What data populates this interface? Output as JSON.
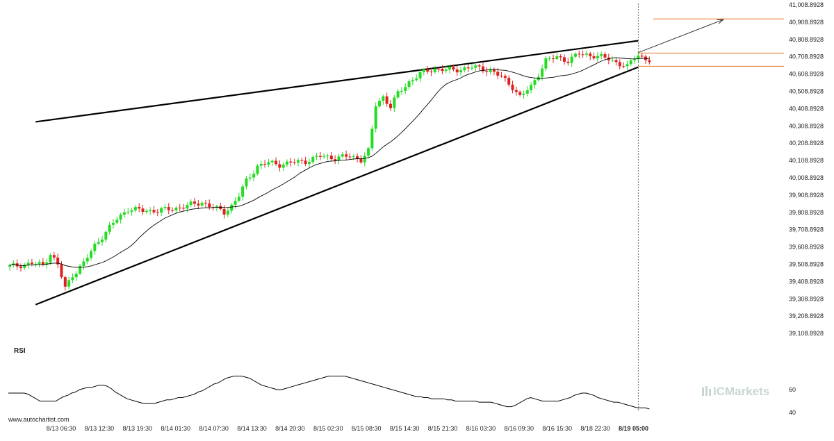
{
  "footer": {
    "source": "www.autochartist.com"
  },
  "brand": {
    "name": "ICMarkets",
    "prefix": "IC",
    "suffix": "Markets"
  },
  "chart_data": [
    {
      "type": "candlestick",
      "title": "",
      "ylim": [
        39008.8928,
        41008.8928
      ],
      "grid": false,
      "y_ticks": [
        "41,008.8928",
        "40,908.8928",
        "40,808.8928",
        "40,708.8928",
        "40,608.8928",
        "40,508.8928",
        "40,408.8928",
        "40,308.8928",
        "40,208.8928",
        "40,108.8928",
        "40,008.8928",
        "39,908.8928",
        "39,808.8928",
        "39,708.8928",
        "39,608.8928",
        "39,508.8928",
        "39,408.8928",
        "39,308.8928",
        "39,208.8928",
        "39,108.8928"
      ],
      "x_ticks": [
        "8/13 06:30",
        "8/13 12:30",
        "8/13 19:30",
        "8/14 01:30",
        "8/14 07:30",
        "8/14 13:30",
        "8/14 20:30",
        "8/15 02:30",
        "8/15 08:30",
        "8/15 14:30",
        "8/15 21:30",
        "8/16 03:30",
        "8/16 09:30",
        "8/16 15:30",
        "8/18 22:30",
        "8/19 05:00"
      ],
      "current_time_label": "8/19 05:00",
      "price_anchors": [
        {
          "t": 0,
          "v": 39430
        },
        {
          "t": 3,
          "v": 39440
        },
        {
          "t": 6,
          "v": 39450
        },
        {
          "t": 9,
          "v": 39440
        },
        {
          "t": 11,
          "v": 39510
        },
        {
          "t": 13,
          "v": 39440
        },
        {
          "t": 15,
          "v": 39300
        },
        {
          "t": 17,
          "v": 39380
        },
        {
          "t": 20,
          "v": 39450
        },
        {
          "t": 23,
          "v": 39560
        },
        {
          "t": 26,
          "v": 39640
        },
        {
          "t": 29,
          "v": 39720
        },
        {
          "t": 32,
          "v": 39780
        },
        {
          "t": 36,
          "v": 39770
        },
        {
          "t": 40,
          "v": 39770
        },
        {
          "t": 44,
          "v": 39780
        },
        {
          "t": 48,
          "v": 39800
        },
        {
          "t": 52,
          "v": 39820
        },
        {
          "t": 55,
          "v": 39790
        },
        {
          "t": 58,
          "v": 39760
        },
        {
          "t": 60,
          "v": 39800
        },
        {
          "t": 62,
          "v": 39860
        },
        {
          "t": 64,
          "v": 39950
        },
        {
          "t": 67,
          "v": 40040
        },
        {
          "t": 70,
          "v": 40060
        },
        {
          "t": 73,
          "v": 40050
        },
        {
          "t": 76,
          "v": 40060
        },
        {
          "t": 80,
          "v": 40070
        },
        {
          "t": 84,
          "v": 40100
        },
        {
          "t": 88,
          "v": 40090
        },
        {
          "t": 92,
          "v": 40100
        },
        {
          "t": 95,
          "v": 40080
        },
        {
          "t": 97,
          "v": 40130
        },
        {
          "t": 98,
          "v": 40260
        },
        {
          "t": 99,
          "v": 40410
        },
        {
          "t": 101,
          "v": 40460
        },
        {
          "t": 103,
          "v": 40400
        },
        {
          "t": 105,
          "v": 40480
        },
        {
          "t": 108,
          "v": 40550
        },
        {
          "t": 111,
          "v": 40600
        },
        {
          "t": 115,
          "v": 40630
        },
        {
          "t": 120,
          "v": 40620
        },
        {
          "t": 125,
          "v": 40640
        },
        {
          "t": 130,
          "v": 40620
        },
        {
          "t": 133,
          "v": 40580
        },
        {
          "t": 136,
          "v": 40520
        },
        {
          "t": 138,
          "v": 40460
        },
        {
          "t": 141,
          "v": 40520
        },
        {
          "t": 143,
          "v": 40600
        },
        {
          "t": 145,
          "v": 40680
        },
        {
          "t": 148,
          "v": 40700
        },
        {
          "t": 151,
          "v": 40680
        },
        {
          "t": 154,
          "v": 40720
        },
        {
          "t": 158,
          "v": 40710
        },
        {
          "t": 162,
          "v": 40690
        },
        {
          "t": 165,
          "v": 40660
        },
        {
          "t": 167,
          "v": 40640
        },
        {
          "t": 169,
          "v": 40700
        },
        {
          "t": 170,
          "v": 40715
        },
        {
          "t": 171,
          "v": 40700
        },
        {
          "t": 173,
          "v": 40680
        }
      ],
      "last_candle_index": 170,
      "candles_total": 174,
      "ma_period": 20,
      "pattern": {
        "name": "Rising Wedge",
        "upper_line": {
          "from": {
            "t": 7,
            "v": 40308
          },
          "to": {
            "t": 170,
            "v": 40800
          }
        },
        "lower_line": {
          "from": {
            "t": 7,
            "v": 39200
          },
          "to": {
            "t": 170,
            "v": 40640
          }
        },
        "forecast_arrow": {
          "from": {
            "t": 170,
            "v": 40728
          },
          "to": {
            "t": 193,
            "v": 40928
          }
        },
        "levels": [
          {
            "name": "target",
            "value": 40932,
            "from_t": 174
          },
          {
            "name": "resistance",
            "value": 40725,
            "from_t": 170
          },
          {
            "name": "support",
            "value": 40645,
            "from_t": 170
          }
        ]
      },
      "colors": {
        "bull": "#22dd22",
        "bear": "#e02020",
        "pattern": "#000000",
        "level": "#e07020",
        "ma": "#000000",
        "time_marker": "#666666"
      }
    },
    {
      "type": "line",
      "title": "RSI",
      "ylim": [
        35,
        90
      ],
      "y_ticks": [
        60,
        40
      ],
      "values": [
        57,
        57,
        57,
        57,
        57,
        56,
        54,
        52,
        50,
        50,
        50,
        50,
        50,
        52,
        54,
        55,
        57,
        58,
        60,
        61,
        62,
        62,
        63,
        64,
        64,
        63,
        61,
        58,
        56,
        54,
        52,
        51,
        50,
        49,
        48,
        48,
        48,
        48,
        49,
        50,
        51,
        51,
        52,
        53,
        53,
        54,
        55,
        56,
        58,
        59,
        61,
        63,
        65,
        66,
        68,
        70,
        71,
        72,
        72,
        72,
        71,
        70,
        68,
        66,
        64,
        63,
        62,
        61,
        60,
        60,
        61,
        62,
        63,
        64,
        65,
        66,
        67,
        68,
        69,
        70,
        71,
        72,
        72,
        72,
        72,
        72,
        71,
        70,
        69,
        68,
        67,
        66,
        65,
        64,
        63,
        62,
        61,
        60,
        59,
        58,
        57,
        56,
        55,
        54,
        54,
        53,
        53,
        52,
        52,
        52,
        52,
        51,
        51,
        50,
        50,
        50,
        50,
        50,
        50,
        49,
        49,
        49,
        49,
        48,
        47,
        46,
        45,
        45,
        46,
        48,
        50,
        52,
        53,
        52,
        51,
        50,
        50,
        50,
        50,
        50,
        51,
        52,
        53,
        55,
        56,
        57,
        57,
        56,
        55,
        53,
        52,
        51,
        50,
        49,
        49,
        48,
        47,
        46,
        45,
        44,
        44,
        44,
        43
      ]
    }
  ]
}
